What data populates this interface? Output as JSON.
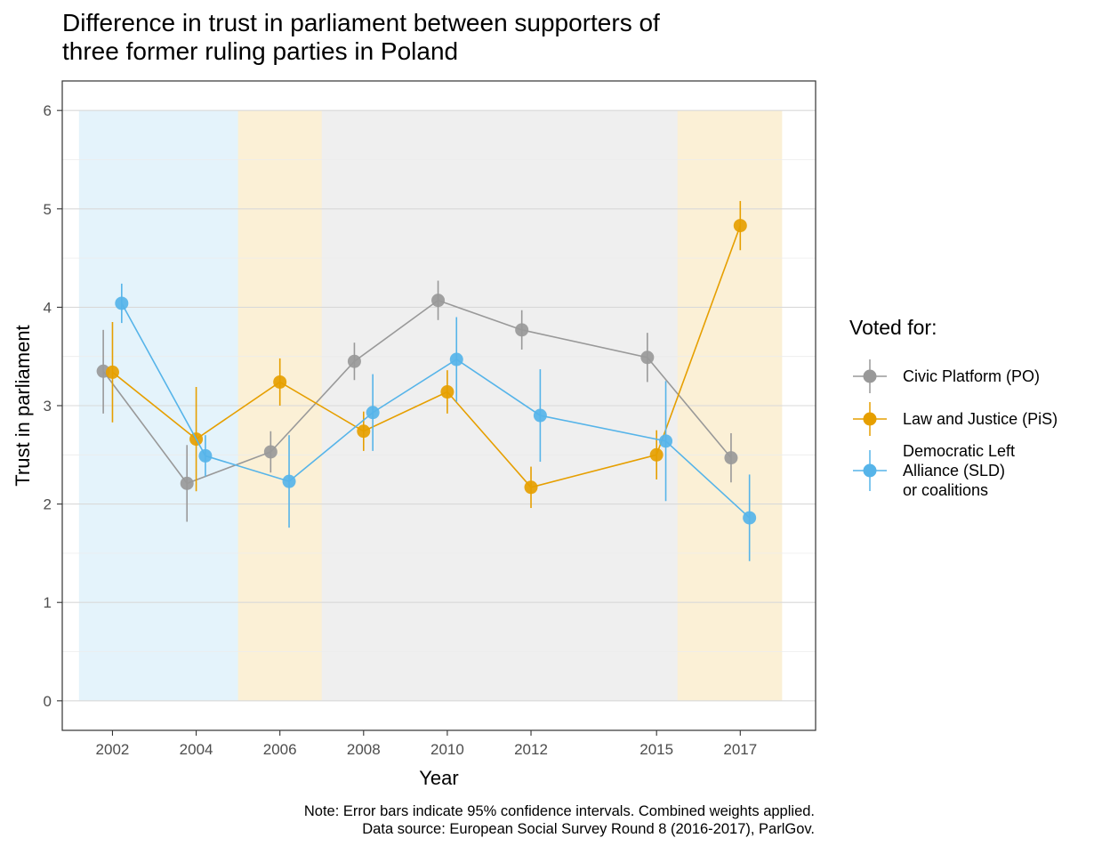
{
  "title": {
    "line1": "Difference in trust in parliament between supporters of",
    "line2": "three former ruling parties in Poland"
  },
  "note": {
    "line1": "Note: Error bars indicate 95% confidence intervals. Combined weights applied.",
    "line2": "Data source: European Social Survey Round 8 (2016-2017), ParlGov."
  },
  "legend": {
    "title": "Voted for:",
    "items": [
      {
        "label": "Civic Platform (PO)",
        "color": "#999999"
      },
      {
        "label": "Law and Justice (PiS)",
        "color": "#E69F00"
      },
      {
        "label": "Democratic Left\nAlliance (SLD)\nor coalitions",
        "color": "#56B4E9"
      }
    ]
  },
  "chart_data": {
    "type": "line",
    "xlabel": "Year",
    "ylabel": "Trust in parliament",
    "xlim": [
      2000.8,
      2018.8
    ],
    "ylim": [
      -0.3,
      6.3
    ],
    "x_ticks": [
      2002,
      2004,
      2006,
      2008,
      2010,
      2012,
      2015,
      2017
    ],
    "y_ticks": [
      0,
      1,
      2,
      3,
      4,
      5,
      6
    ],
    "grid": true,
    "legend_position": "right",
    "background_bands": [
      {
        "from": 2001.2,
        "to": 2005,
        "party": "SLD",
        "color": "#56B4E9"
      },
      {
        "from": 2005,
        "to": 2007,
        "party": "PiS",
        "color": "#E69F00"
      },
      {
        "from": 2007,
        "to": 2015.5,
        "party": "PO",
        "color": "#999999"
      },
      {
        "from": 2015.5,
        "to": 2018,
        "party": "PiS",
        "color": "#E69F00"
      }
    ],
    "series": [
      {
        "name": "Civic Platform (PO)",
        "color": "#999999",
        "x": [
          2002,
          2004,
          2006,
          2008,
          2010,
          2012,
          2015,
          2017
        ],
        "y": [
          3.35,
          2.21,
          2.53,
          3.45,
          4.07,
          3.77,
          3.49,
          2.47
        ],
        "ci_low": [
          2.92,
          1.82,
          2.32,
          3.26,
          3.87,
          3.57,
          3.24,
          2.22
        ],
        "ci_high": [
          3.77,
          2.6,
          2.74,
          3.64,
          4.27,
          3.97,
          3.74,
          2.72
        ]
      },
      {
        "name": "Law and Justice (PiS)",
        "color": "#E69F00",
        "x": [
          2002,
          2004,
          2006,
          2008,
          2010,
          2012,
          2015,
          2017
        ],
        "y": [
          3.34,
          2.66,
          3.24,
          2.74,
          3.14,
          2.17,
          2.5,
          4.83
        ],
        "ci_low": [
          2.83,
          2.13,
          3.0,
          2.54,
          2.92,
          1.96,
          2.25,
          4.58
        ],
        "ci_high": [
          3.85,
          3.19,
          3.48,
          2.94,
          3.36,
          2.38,
          2.75,
          5.08
        ]
      },
      {
        "name": "Democratic Left Alliance (SLD) or coalitions",
        "color": "#56B4E9",
        "x": [
          2002,
          2004,
          2006,
          2008,
          2010,
          2012,
          2015,
          2017
        ],
        "y": [
          4.04,
          2.49,
          2.23,
          2.93,
          3.47,
          2.9,
          2.64,
          1.86
        ],
        "ci_low": [
          3.84,
          2.28,
          1.76,
          2.54,
          3.04,
          2.43,
          2.03,
          1.42
        ],
        "ci_high": [
          4.24,
          2.7,
          2.7,
          3.32,
          3.9,
          3.37,
          3.25,
          2.3
        ]
      }
    ]
  }
}
